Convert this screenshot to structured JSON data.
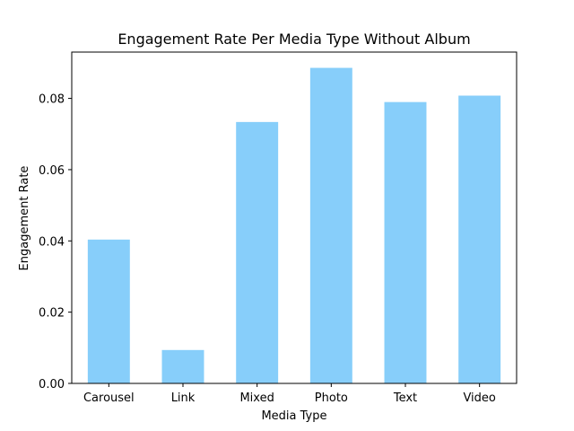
{
  "chart_data": {
    "type": "bar",
    "title": "Engagement Rate Per Media Type Without Album",
    "xlabel": "Media Type",
    "ylabel": "Engagement Rate",
    "categories": [
      "Carousel",
      "Link",
      "Mixed",
      "Photo",
      "Text",
      "Video"
    ],
    "values": [
      0.0405,
      0.0095,
      0.0735,
      0.0887,
      0.0791,
      0.0809
    ],
    "ylim": [
      0,
      0.093
    ],
    "yticks": [
      0.0,
      0.02,
      0.04,
      0.06,
      0.08
    ],
    "ytick_labels": [
      "0.00",
      "0.02",
      "0.04",
      "0.06",
      "0.08"
    ],
    "bar_color": "#87CEFA",
    "grid": false,
    "legend": "none"
  }
}
